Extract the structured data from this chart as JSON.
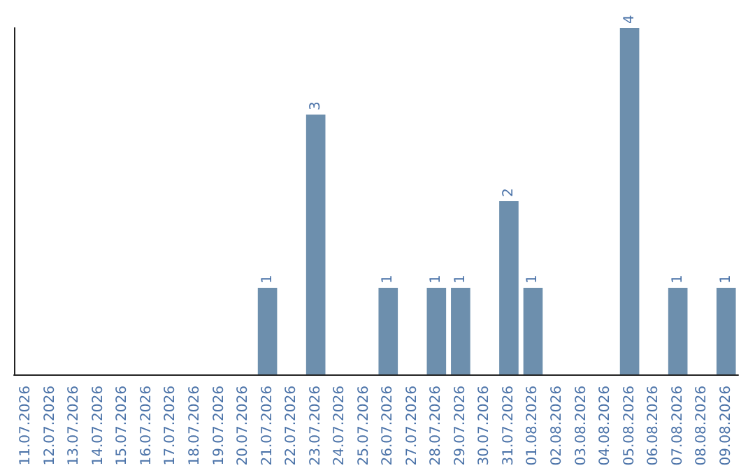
{
  "chart_data": {
    "type": "bar",
    "categories": [
      "11.07.2026",
      "12.07.2026",
      "13.07.2026",
      "14.07.2026",
      "15.07.2026",
      "16.07.2026",
      "17.07.2026",
      "18.07.2026",
      "19.07.2026",
      "20.07.2026",
      "21.07.2026",
      "22.07.2026",
      "23.07.2026",
      "24.07.2026",
      "25.07.2026",
      "26.07.2026",
      "27.07.2026",
      "28.07.2026",
      "29.07.2026",
      "30.07.2026",
      "31.07.2026",
      "01.08.2026",
      "02.08.2026",
      "03.08.2026",
      "04.08.2026",
      "05.08.2026",
      "06.08.2026",
      "07.08.2026",
      "08.08.2026",
      "09.08.2026"
    ],
    "values": [
      0,
      0,
      0,
      0,
      0,
      0,
      0,
      0,
      0,
      0,
      1,
      0,
      3,
      0,
      0,
      1,
      0,
      1,
      1,
      0,
      2,
      1,
      0,
      0,
      0,
      4,
      0,
      1,
      0,
      1
    ],
    "value_labels": [
      null,
      null,
      null,
      null,
      null,
      null,
      null,
      null,
      null,
      null,
      "1",
      null,
      "3",
      null,
      null,
      "1",
      null,
      "1",
      "1",
      null,
      "2",
      "1",
      null,
      null,
      null,
      "4",
      null,
      "1",
      null,
      "1"
    ],
    "color": "#6d8fad",
    "grid": false,
    "tick_labels": "x"
  }
}
